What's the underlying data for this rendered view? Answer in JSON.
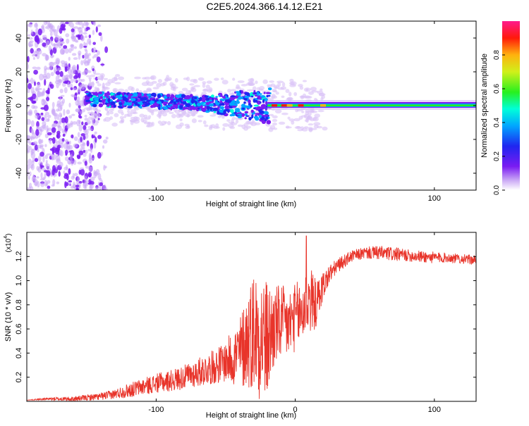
{
  "figure_title": "C2E5.2024.366.14.12.E21",
  "chart_data": [
    {
      "type": "heatmap",
      "title": "C2E5.2024.366.14.12.E21",
      "xlabel": "Height of straight line (km)",
      "ylabel": "Frequency (Hz)",
      "xlim": [
        -193,
        130
      ],
      "ylim": [
        -50,
        50
      ],
      "x_ticks": [
        -100,
        0,
        100
      ],
      "x_tick_labels": [
        "-100",
        "",
        "100"
      ],
      "y_ticks": [
        -40,
        -20,
        0,
        20,
        40
      ],
      "y_tick_labels": [
        "-40",
        "-20",
        "0",
        "20",
        "40"
      ],
      "colorbar": {
        "label": "Normalized spectral amplitude",
        "range": [
          0,
          1
        ],
        "ticks": [
          0.0,
          0.2,
          0.4,
          0.6,
          0.8
        ],
        "tick_labels": [
          "0.0",
          "0.2",
          "0.4",
          "0.6",
          "0.8"
        ]
      },
      "features": [
        {
          "name": "broadband noise",
          "x_range": [
            -193,
            -133
          ],
          "freq_range": [
            -50,
            50
          ],
          "amplitude": 0.15
        },
        {
          "name": "scattered signal band",
          "x_range": [
            -150,
            -18
          ],
          "center_freq": [
            4,
            0
          ],
          "amplitude": 0.35
        },
        {
          "name": "coherent tone",
          "x_range": [
            -20,
            130
          ],
          "center_freq": [
            0,
            1
          ],
          "amplitude": 0.6
        }
      ]
    },
    {
      "type": "line",
      "xlabel": "Height of straight line (km)",
      "ylabel": "SNR (10 * v/v)",
      "y_multiplier_label": "(x10",
      "y_multiplier_exp": "4",
      "xlim": [
        -193,
        130
      ],
      "ylim": [
        0,
        1.4
      ],
      "x_ticks": [
        -100,
        0,
        100
      ],
      "x_tick_labels": [
        "-100",
        "0",
        "100"
      ],
      "y_ticks": [
        0.2,
        0.4,
        0.6,
        0.8,
        1.0,
        1.2
      ],
      "y_tick_labels": [
        "0.2",
        "0.4",
        "0.6",
        "0.8",
        "1.0",
        "1.2"
      ],
      "series": [
        {
          "name": "SNR",
          "color": "#e8342a",
          "x": [
            -193,
            -180,
            -160,
            -140,
            -130,
            -120,
            -110,
            -100,
            -90,
            -80,
            -70,
            -60,
            -50,
            -40,
            -35,
            -30,
            -25,
            -20,
            -15,
            -10,
            -5,
            0,
            5,
            10,
            15,
            20,
            25,
            30,
            40,
            50,
            60,
            70,
            80,
            90,
            100,
            110,
            120,
            130
          ],
          "y": [
            0.01,
            0.02,
            0.02,
            0.04,
            0.06,
            0.09,
            0.12,
            0.15,
            0.17,
            0.2,
            0.24,
            0.28,
            0.33,
            0.4,
            0.5,
            0.6,
            0.55,
            0.5,
            0.62,
            0.65,
            0.63,
            0.7,
            0.74,
            0.85,
            0.8,
            0.96,
            1.06,
            1.12,
            1.2,
            1.23,
            1.23,
            1.22,
            1.21,
            1.2,
            1.19,
            1.19,
            1.18,
            1.17
          ],
          "noise_amplitude": [
            0.0,
            0.01,
            0.02,
            0.03,
            0.04,
            0.06,
            0.07,
            0.08,
            0.09,
            0.1,
            0.12,
            0.14,
            0.17,
            0.3,
            0.4,
            0.5,
            0.55,
            0.5,
            0.35,
            0.32,
            0.3,
            0.28,
            0.3,
            0.3,
            0.2,
            0.12,
            0.08,
            0.06,
            0.05,
            0.05,
            0.06,
            0.06,
            0.05,
            0.05,
            0.05,
            0.04,
            0.04,
            0.04
          ],
          "peak": {
            "x": 8,
            "y": 1.37
          }
        }
      ]
    }
  ]
}
